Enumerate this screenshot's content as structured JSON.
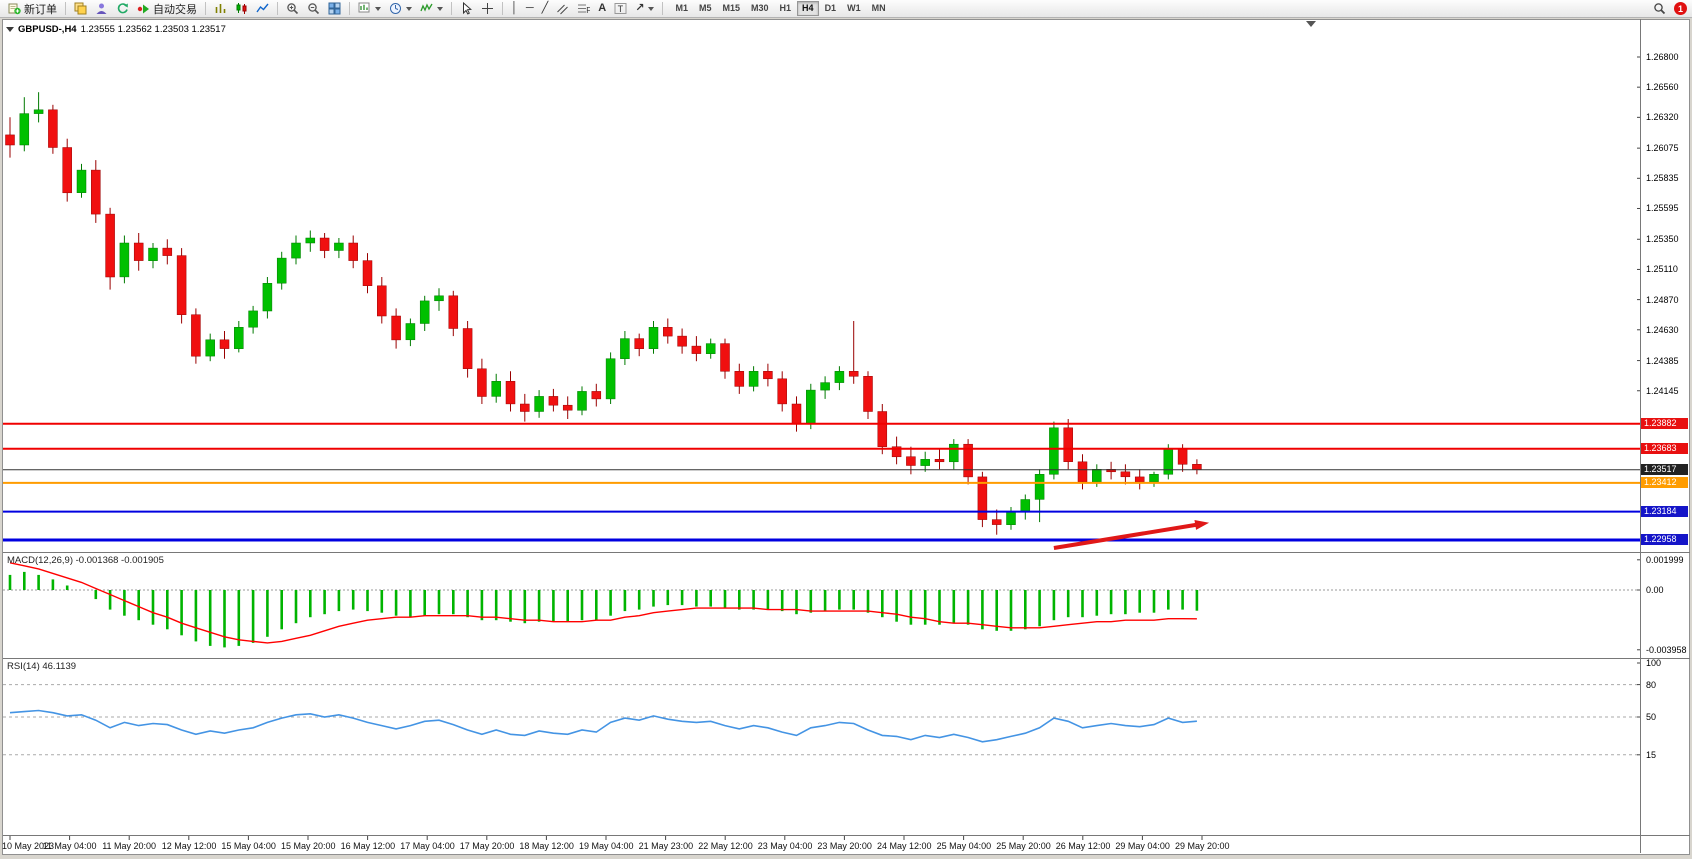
{
  "toolbar": {
    "new_order": "新订单",
    "auto_trading": "自动交易",
    "timeframes": [
      "M1",
      "M5",
      "M15",
      "M30",
      "H1",
      "H4",
      "D1",
      "W1",
      "MN"
    ],
    "active_timeframe": "H4",
    "badge_count": "1"
  },
  "chart": {
    "symbol": "GBPUSD-,H4",
    "ohlc": "1.23555 1.23562 1.23503 1.23517",
    "colors": {
      "up": "#00c000",
      "up_dark": "#007a00",
      "down": "#f01010",
      "down_dark": "#990000",
      "macd": "#00b400",
      "macd_signal": "#ff0000",
      "rsi": "#4494e4",
      "arrow": "#e01818"
    }
  },
  "main_chart": {
    "price_axis_labels": [
      "1.26800",
      "1.26560",
      "1.26320",
      "1.26075",
      "1.25835",
      "1.25595",
      "1.25350",
      "1.25110",
      "1.24870",
      "1.24630",
      "1.24385",
      "1.24145"
    ],
    "levels": [
      {
        "price": "1.23882",
        "color": "#f00000",
        "width": 2,
        "tag_bg": "#e81010"
      },
      {
        "price": "1.23683",
        "color": "#f00000",
        "width": 2,
        "tag_bg": "#e81010"
      },
      {
        "price": "1.23517",
        "color": "#333333",
        "width": 1,
        "tag_bg": "#222222"
      },
      {
        "price": "1.23412",
        "color": "#ff9c00",
        "width": 2,
        "tag_bg": "#ff9c00"
      },
      {
        "price": "1.23184",
        "color": "#0000e0",
        "width": 2,
        "tag_bg": "#1515c8"
      },
      {
        "price": "1.22958",
        "color": "#0000e0",
        "width": 3,
        "tag_bg": "#1515c8"
      }
    ],
    "arrow": {
      "from_index": 73,
      "from_price": 1.22894,
      "to_index": 83.3,
      "to_price": 1.23085
    }
  },
  "time_axis": {
    "labels": [
      "10 May 2023",
      "11 May 04:00",
      "11 May 20:00",
      "12 May 12:00",
      "15 May 04:00",
      "15 May 20:00",
      "16 May 12:00",
      "17 May 04:00",
      "17 May 20:00",
      "18 May 12:00",
      "19 May 04:00",
      "21 May 23:00",
      "22 May 12:00",
      "23 May 04:00",
      "23 May 20:00",
      "24 May 12:00",
      "25 May 04:00",
      "25 May 20:00",
      "26 May 12:00",
      "29 May 04:00",
      "29 May 20:00"
    ]
  },
  "indicators": {
    "macd": {
      "label": "MACD(12,26,9) -0.001368 -0.001905",
      "scale": [
        "0.001999",
        "0.00",
        "-0.003958"
      ]
    },
    "rsi": {
      "label": "RSI(14) 46.1139",
      "scale": [
        "100",
        "80",
        "50",
        "15"
      ],
      "levels": [
        80,
        50,
        15
      ]
    }
  },
  "chart_data": [
    {
      "type": "candlestick",
      "name": "GBPUSD- H4 price",
      "ylim": [
        1.2287,
        1.2709
      ],
      "candles": [
        [
          1.2618,
          1.2632,
          1.26,
          1.261
        ],
        [
          1.261,
          1.2648,
          1.2605,
          1.2635
        ],
        [
          1.2635,
          1.2652,
          1.2628,
          1.2638
        ],
        [
          1.2638,
          1.2642,
          1.2603,
          1.2608
        ],
        [
          1.2608,
          1.2615,
          1.2565,
          1.2572
        ],
        [
          1.2572,
          1.2595,
          1.2568,
          1.259
        ],
        [
          1.259,
          1.2598,
          1.2548,
          1.2555
        ],
        [
          1.2555,
          1.256,
          1.2495,
          1.2505
        ],
        [
          1.2505,
          1.2538,
          1.25,
          1.2532
        ],
        [
          1.2532,
          1.254,
          1.251,
          1.2518
        ],
        [
          1.2518,
          1.2532,
          1.2512,
          1.2528
        ],
        [
          1.2528,
          1.2535,
          1.2515,
          1.2522
        ],
        [
          1.2522,
          1.2528,
          1.2468,
          1.2475
        ],
        [
          1.2475,
          1.248,
          1.2436,
          1.2442
        ],
        [
          1.2442,
          1.246,
          1.2438,
          1.2455
        ],
        [
          1.2455,
          1.2462,
          1.244,
          1.2448
        ],
        [
          1.2448,
          1.247,
          1.2445,
          1.2465
        ],
        [
          1.2465,
          1.2482,
          1.246,
          1.2478
        ],
        [
          1.2478,
          1.2505,
          1.2472,
          1.25
        ],
        [
          1.25,
          1.2525,
          1.2495,
          1.252
        ],
        [
          1.252,
          1.2538,
          1.2515,
          1.2532
        ],
        [
          1.2532,
          1.2542,
          1.2525,
          1.2536
        ],
        [
          1.2536,
          1.254,
          1.252,
          1.2526
        ],
        [
          1.2526,
          1.2536,
          1.252,
          1.2532
        ],
        [
          1.2532,
          1.2538,
          1.2512,
          1.2518
        ],
        [
          1.2518,
          1.2524,
          1.2492,
          1.2498
        ],
        [
          1.2498,
          1.2505,
          1.2468,
          1.2474
        ],
        [
          1.2474,
          1.248,
          1.2448,
          1.2455
        ],
        [
          1.2455,
          1.2472,
          1.245,
          1.2468
        ],
        [
          1.2468,
          1.249,
          1.2462,
          1.2486
        ],
        [
          1.2486,
          1.2496,
          1.2478,
          1.249
        ],
        [
          1.249,
          1.2494,
          1.2458,
          1.2464
        ],
        [
          1.2464,
          1.247,
          1.2425,
          1.2432
        ],
        [
          1.2432,
          1.244,
          1.2404,
          1.241
        ],
        [
          1.241,
          1.2428,
          1.2405,
          1.2422
        ],
        [
          1.2422,
          1.243,
          1.2398,
          1.2404
        ],
        [
          1.2404,
          1.2412,
          1.239,
          1.2398
        ],
        [
          1.2398,
          1.2415,
          1.2393,
          1.241
        ],
        [
          1.241,
          1.2416,
          1.2398,
          1.2403
        ],
        [
          1.2403,
          1.241,
          1.2392,
          1.2399
        ],
        [
          1.2399,
          1.2418,
          1.2395,
          1.2414
        ],
        [
          1.2414,
          1.242,
          1.2402,
          1.2408
        ],
        [
          1.2408,
          1.2445,
          1.2404,
          1.244
        ],
        [
          1.244,
          1.2462,
          1.2435,
          1.2456
        ],
        [
          1.2456,
          1.246,
          1.2442,
          1.2448
        ],
        [
          1.2448,
          1.247,
          1.2444,
          1.2465
        ],
        [
          1.2465,
          1.2472,
          1.2452,
          1.2458
        ],
        [
          1.2458,
          1.2464,
          1.2444,
          1.245
        ],
        [
          1.245,
          1.2458,
          1.2438,
          1.2444
        ],
        [
          1.2444,
          1.2456,
          1.244,
          1.2452
        ],
        [
          1.2452,
          1.2456,
          1.2424,
          1.243
        ],
        [
          1.243,
          1.2436,
          1.2412,
          1.2418
        ],
        [
          1.2418,
          1.2434,
          1.2414,
          1.243
        ],
        [
          1.243,
          1.2436,
          1.2418,
          1.2424
        ],
        [
          1.2424,
          1.243,
          1.2398,
          1.2404
        ],
        [
          1.2404,
          1.241,
          1.2382,
          1.2388
        ],
        [
          1.2388,
          1.242,
          1.2384,
          1.2415
        ],
        [
          1.2415,
          1.2426,
          1.2408,
          1.2421
        ],
        [
          1.2421,
          1.2434,
          1.2415,
          1.243
        ],
        [
          1.243,
          1.247,
          1.242,
          1.2426
        ],
        [
          1.2426,
          1.243,
          1.2392,
          1.2398
        ],
        [
          1.2398,
          1.2404,
          1.2364,
          1.237
        ],
        [
          1.237,
          1.2378,
          1.2356,
          1.2362
        ],
        [
          1.2362,
          1.237,
          1.2348,
          1.2355
        ],
        [
          1.2355,
          1.2366,
          1.235,
          1.236
        ],
        [
          1.236,
          1.2368,
          1.2352,
          1.2358
        ],
        [
          1.2358,
          1.2376,
          1.2352,
          1.2372
        ],
        [
          1.2372,
          1.2376,
          1.234,
          1.2346
        ],
        [
          1.2346,
          1.235,
          1.2306,
          1.2312
        ],
        [
          1.2312,
          1.232,
          1.23,
          1.2308
        ],
        [
          1.2308,
          1.2322,
          1.2304,
          1.2318
        ],
        [
          1.2318,
          1.2332,
          1.2312,
          1.2328
        ],
        [
          1.2328,
          1.2352,
          1.231,
          1.2348
        ],
        [
          1.2348,
          1.239,
          1.2344,
          1.2385
        ],
        [
          1.2385,
          1.2392,
          1.2352,
          1.2358
        ],
        [
          1.2358,
          1.2364,
          1.2336,
          1.2342
        ],
        [
          1.2342,
          1.2356,
          1.2338,
          1.2352
        ],
        [
          1.2352,
          1.2358,
          1.2344,
          1.235
        ],
        [
          1.235,
          1.2356,
          1.234,
          1.2346
        ],
        [
          1.2346,
          1.2352,
          1.2336,
          1.2342
        ],
        [
          1.2342,
          1.235,
          1.2338,
          1.2348
        ],
        [
          1.2348,
          1.2372,
          1.2344,
          1.2368
        ],
        [
          1.2368,
          1.2372,
          1.235,
          1.2356
        ],
        [
          1.2356,
          1.236,
          1.2348,
          1.23517
        ]
      ]
    },
    {
      "type": "bar",
      "name": "MACD(12,26,9)",
      "ylim": [
        -0.00449,
        0.00253
      ],
      "histogram": [
        0.001,
        0.0012,
        0.001,
        0.0007,
        0.0003,
        0.0,
        -0.0006,
        -0.0013,
        -0.0017,
        -0.002,
        -0.0023,
        -0.0026,
        -0.003,
        -0.0034,
        -0.0037,
        -0.0038,
        -0.0037,
        -0.0035,
        -0.0031,
        -0.0026,
        -0.0022,
        -0.0018,
        -0.0016,
        -0.0014,
        -0.0013,
        -0.0014,
        -0.0015,
        -0.0017,
        -0.0018,
        -0.0017,
        -0.0016,
        -0.0016,
        -0.0018,
        -0.002,
        -0.002,
        -0.0021,
        -0.0022,
        -0.0021,
        -0.0021,
        -0.0021,
        -0.002,
        -0.002,
        -0.0017,
        -0.0014,
        -0.0013,
        -0.0011,
        -0.001,
        -0.001,
        -0.0011,
        -0.0011,
        -0.0012,
        -0.0013,
        -0.0013,
        -0.0013,
        -0.0014,
        -0.0016,
        -0.0015,
        -0.0014,
        -0.0013,
        -0.0013,
        -0.0015,
        -0.0018,
        -0.0021,
        -0.0023,
        -0.0023,
        -0.0023,
        -0.0022,
        -0.0023,
        -0.0026,
        -0.0027,
        -0.0027,
        -0.0026,
        -0.0024,
        -0.002,
        -0.0018,
        -0.0018,
        -0.0017,
        -0.0016,
        -0.0016,
        -0.0015,
        -0.0015,
        -0.0013,
        -0.0013,
        -0.001368
      ],
      "signal": [
        0.0018,
        0.0016,
        0.0014,
        0.0011,
        0.0008,
        0.0005,
        0.0001,
        -0.0003,
        -0.0007,
        -0.0011,
        -0.0015,
        -0.0018,
        -0.0022,
        -0.0025,
        -0.0028,
        -0.0031,
        -0.0033,
        -0.0034,
        -0.0035,
        -0.0034,
        -0.0032,
        -0.003,
        -0.0027,
        -0.0024,
        -0.0022,
        -0.002,
        -0.0019,
        -0.0018,
        -0.0018,
        -0.0017,
        -0.0017,
        -0.0017,
        -0.0017,
        -0.0018,
        -0.0018,
        -0.0019,
        -0.002,
        -0.002,
        -0.0021,
        -0.0021,
        -0.0021,
        -0.002,
        -0.002,
        -0.0018,
        -0.0017,
        -0.0015,
        -0.0014,
        -0.0013,
        -0.0012,
        -0.0012,
        -0.0012,
        -0.0012,
        -0.0012,
        -0.0013,
        -0.0013,
        -0.0013,
        -0.0014,
        -0.0014,
        -0.0014,
        -0.0014,
        -0.0014,
        -0.0015,
        -0.0016,
        -0.0018,
        -0.0019,
        -0.0021,
        -0.0022,
        -0.0022,
        -0.0023,
        -0.0024,
        -0.0025,
        -0.0025,
        -0.0025,
        -0.0024,
        -0.0023,
        -0.0022,
        -0.0021,
        -0.0021,
        -0.002,
        -0.002,
        -0.002,
        -0.0019,
        -0.0019,
        -0.001905
      ]
    },
    {
      "type": "line",
      "name": "RSI(14)",
      "ylim": [
        0,
        100
      ],
      "values": [
        54,
        55,
        56,
        54,
        51,
        52,
        47,
        40,
        45,
        42,
        44,
        43,
        38,
        34,
        37,
        35,
        38,
        40,
        45,
        49,
        52,
        53,
        50,
        52,
        49,
        45,
        42,
        39,
        42,
        46,
        47,
        43,
        38,
        34,
        38,
        34,
        33,
        37,
        35,
        34,
        38,
        36,
        45,
        49,
        47,
        51,
        48,
        46,
        45,
        46,
        42,
        39,
        42,
        40,
        36,
        33,
        40,
        42,
        45,
        44,
        38,
        33,
        32,
        29,
        33,
        31,
        34,
        31,
        27,
        29,
        32,
        35,
        40,
        49,
        46,
        40,
        42,
        44,
        42,
        41,
        43,
        49,
        45,
        46.11
      ]
    }
  ]
}
